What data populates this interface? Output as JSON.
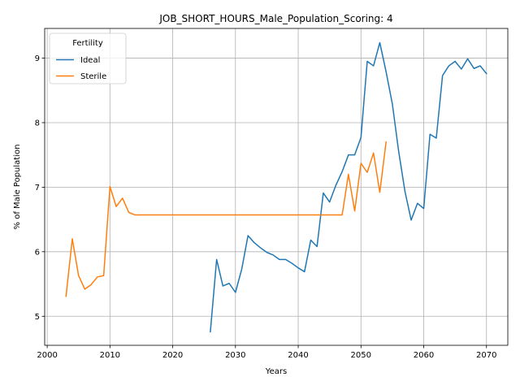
{
  "chart_data": {
    "type": "line",
    "title": "JOB_SHORT_HOURS_Male_Population_Scoring: 4",
    "xlabel": "Years",
    "ylabel": "% of Male Population",
    "xlim": [
      1999.6,
      2073.4
    ],
    "ylim": [
      4.55,
      9.46
    ],
    "xticks": [
      2000,
      2010,
      2020,
      2030,
      2040,
      2050,
      2060,
      2070
    ],
    "yticks": [
      5,
      6,
      7,
      8,
      9
    ],
    "grid": true,
    "legend": {
      "title": "Fertility",
      "placement": "top-left"
    },
    "series": [
      {
        "name": "Ideal",
        "color": "#1f77b4",
        "x": [
          2026,
          2027,
          2028,
          2029,
          2030,
          2031,
          2032,
          2033,
          2034,
          2035,
          2036,
          2037,
          2038,
          2039,
          2040,
          2041,
          2042,
          2043,
          2044,
          2045,
          2046,
          2047,
          2048,
          2049,
          2050,
          2051,
          2052,
          2053,
          2054,
          2055,
          2056,
          2057,
          2058,
          2059,
          2060,
          2061,
          2062,
          2063,
          2064,
          2065,
          2066,
          2067,
          2068,
          2069,
          2070
        ],
        "y": [
          4.76,
          5.88,
          5.47,
          5.51,
          5.37,
          5.73,
          6.25,
          6.14,
          6.06,
          5.99,
          5.95,
          5.88,
          5.88,
          5.82,
          5.75,
          5.69,
          6.18,
          6.08,
          6.91,
          6.77,
          7.03,
          7.24,
          7.5,
          7.5,
          7.77,
          8.95,
          8.88,
          9.24,
          8.79,
          8.29,
          7.56,
          6.94,
          6.49,
          6.75,
          6.67,
          7.82,
          7.76,
          8.73,
          8.88,
          8.95,
          8.83,
          8.99,
          8.84,
          8.88,
          8.76
        ]
      },
      {
        "name": "Sterile",
        "color": "#ff7f0e",
        "x": [
          2003,
          2004,
          2005,
          2006,
          2007,
          2008,
          2009,
          2010,
          2011,
          2012,
          2013,
          2014,
          2015,
          2016,
          2017,
          2018,
          2019,
          2020,
          2021,
          2022,
          2023,
          2024,
          2025,
          2026,
          2027,
          2028,
          2029,
          2030,
          2031,
          2032,
          2033,
          2034,
          2035,
          2036,
          2037,
          2038,
          2039,
          2040,
          2041,
          2042,
          2043,
          2044,
          2045,
          2046,
          2047,
          2048,
          2049,
          2050,
          2051,
          2052,
          2053,
          2054
        ],
        "y": [
          5.31,
          6.2,
          5.63,
          5.42,
          5.49,
          5.61,
          5.63,
          7.01,
          6.7,
          6.83,
          6.61,
          6.57,
          6.57,
          6.57,
          6.57,
          6.57,
          6.57,
          6.57,
          6.57,
          6.57,
          6.57,
          6.57,
          6.57,
          6.57,
          6.57,
          6.57,
          6.57,
          6.57,
          6.57,
          6.57,
          6.57,
          6.57,
          6.57,
          6.57,
          6.57,
          6.57,
          6.57,
          6.57,
          6.57,
          6.57,
          6.57,
          6.57,
          6.57,
          6.57,
          6.57,
          7.2,
          6.63,
          7.37,
          7.23,
          7.53,
          6.92,
          7.7
        ]
      }
    ]
  }
}
